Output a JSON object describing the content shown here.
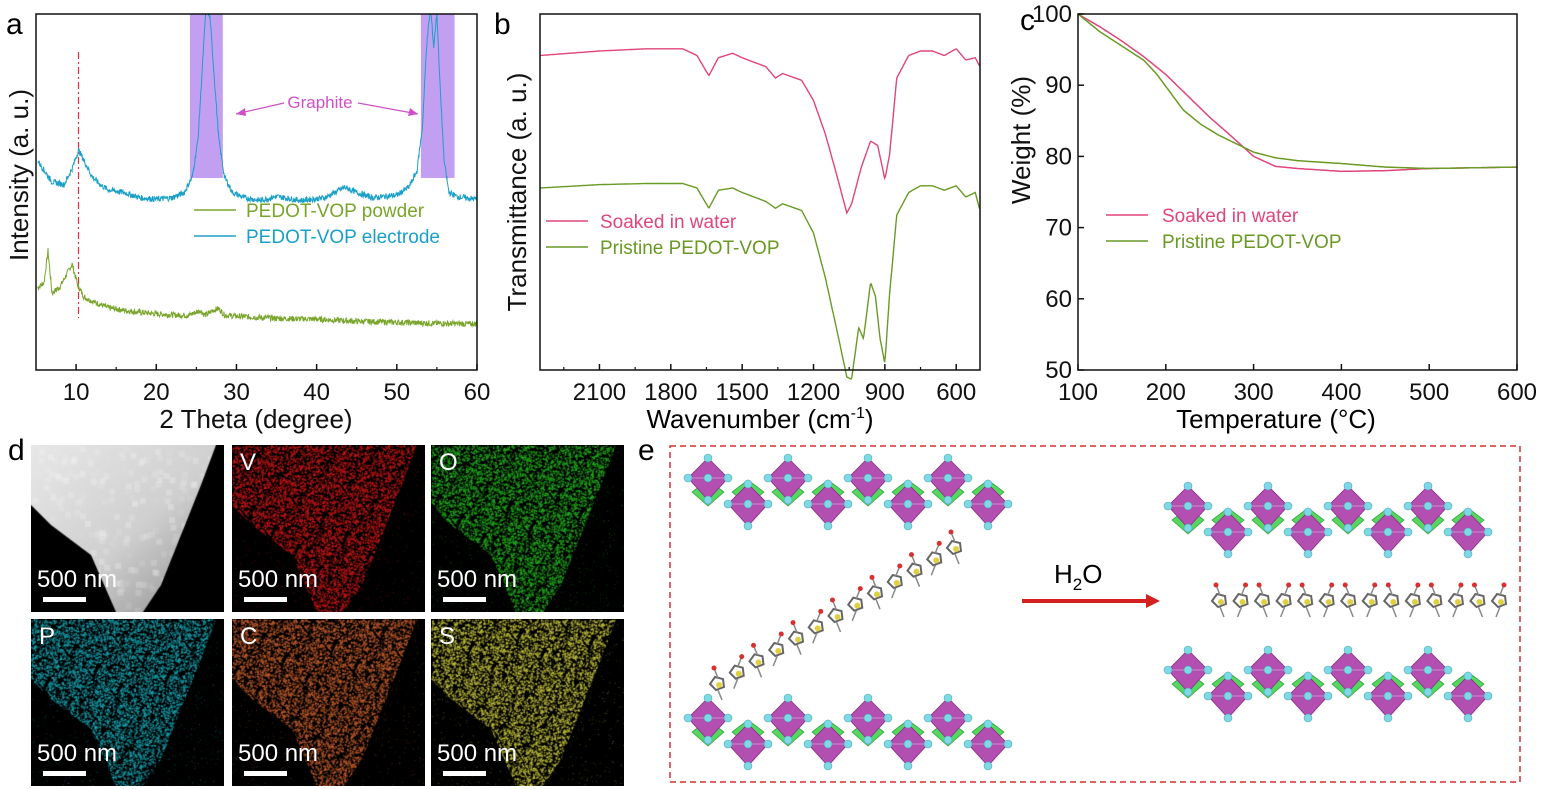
{
  "panels": {
    "a": {
      "letter": "a",
      "annotation": "Graphite"
    },
    "b": {
      "letter": "b"
    },
    "c": {
      "letter": "c"
    },
    "d": {
      "letter": "d"
    },
    "e": {
      "letter": "e",
      "arrow_label_main": "H",
      "arrow_label_sub": "2",
      "arrow_label_tail": "O"
    }
  },
  "chart_data": [
    {
      "panel": "a",
      "type": "line",
      "xlabel": "2 Theta (degree)",
      "ylabel": "Intensity (a. u.)",
      "xlim": [
        5,
        60
      ],
      "xticks": [
        10,
        20,
        30,
        40,
        50,
        60
      ],
      "series": [
        {
          "name": "PEDOT-VOP powder",
          "color": "#7aa52c",
          "x": [
            5.2,
            6,
            6.5,
            7,
            8,
            8.8,
            9.5,
            10.2,
            11,
            12,
            14,
            16,
            18,
            20,
            22,
            24,
            25.5,
            26,
            26.5,
            27,
            27.8,
            28.5,
            30,
            35,
            40,
            45,
            50,
            55,
            60
          ],
          "y": [
            1.4,
            1.6,
            2.8,
            1.2,
            1.45,
            1.9,
            2.3,
            1.5,
            1.05,
            0.9,
            0.65,
            0.55,
            0.48,
            0.42,
            0.38,
            0.36,
            0.55,
            0.38,
            0.42,
            0.55,
            0.62,
            0.38,
            0.33,
            0.25,
            0.22,
            0.14,
            0.1,
            0.06,
            0.04
          ]
        },
        {
          "name": "PEDOT-VOP electrode",
          "color": "#1aa0c8",
          "x": [
            5.2,
            7,
            8.5,
            9.5,
            10.3,
            11,
            12,
            13,
            14,
            16,
            18,
            20,
            22,
            23.5,
            24.5,
            25.2,
            25.8,
            26.2,
            26.7,
            27.2,
            27.8,
            28.5,
            29.5,
            31,
            33,
            35,
            38,
            41,
            43.5,
            45,
            47,
            50,
            51.5,
            52.5,
            53.2,
            53.7,
            54.2,
            54.6,
            55.0,
            55.4,
            55.9,
            56.5,
            57.5,
            58.5,
            60
          ],
          "y": [
            6.2,
            5.4,
            5.3,
            5.9,
            6.6,
            6.2,
            5.6,
            5.3,
            5.1,
            5.0,
            4.8,
            4.75,
            4.8,
            5.0,
            5.6,
            7.0,
            10.0,
            12.0,
            11.6,
            9.5,
            7.0,
            5.6,
            5.0,
            4.8,
            4.7,
            4.85,
            4.7,
            4.8,
            5.2,
            5.0,
            4.8,
            4.9,
            5.2,
            5.8,
            7.5,
            10.5,
            12.0,
            10.5,
            11.8,
            9.0,
            6.2,
            5.0,
            4.85,
            4.8,
            4.75
          ]
        }
      ],
      "markers": {
        "dashed_line_x": 10.3,
        "graphite_bands": [
          [
            24.2,
            28.3
          ],
          [
            53.0,
            57.2
          ]
        ]
      }
    },
    {
      "panel": "b",
      "type": "line",
      "xlabel": "Wavenumber (cm",
      "xlabel_sup": "-1",
      "xlabel_tail": ")",
      "ylabel": "Transmittance (a. u.)",
      "xlim": [
        2350,
        500
      ],
      "xticks": [
        2100,
        1800,
        1500,
        1200,
        900,
        600
      ],
      "series": [
        {
          "name": "Soaked in water",
          "color": "#e0457b",
          "x": [
            2350,
            2100,
            1900,
            1750,
            1690,
            1640,
            1600,
            1540,
            1500,
            1450,
            1400,
            1360,
            1330,
            1250,
            1200,
            1150,
            1100,
            1060,
            1040,
            1000,
            960,
            930,
            900,
            880,
            850,
            800,
            750,
            700,
            650,
            600,
            560,
            520,
            500
          ],
          "y": [
            7.0,
            7.2,
            7.3,
            7.3,
            7.0,
            6.1,
            6.9,
            7.1,
            6.9,
            6.7,
            6.5,
            6.0,
            6.2,
            5.9,
            5.0,
            3.5,
            1.6,
            0.0,
            0.4,
            2.0,
            3.2,
            3.0,
            1.5,
            2.6,
            6.0,
            7.0,
            7.2,
            7.2,
            7.0,
            7.3,
            6.8,
            6.9,
            6.5
          ]
        },
        {
          "name": "Pristine PEDOT-VOP",
          "color": "#6a9a25",
          "x": [
            2350,
            2100,
            1900,
            1750,
            1690,
            1640,
            1600,
            1540,
            1500,
            1450,
            1400,
            1360,
            1330,
            1250,
            1200,
            1150,
            1100,
            1060,
            1040,
            1010,
            990,
            960,
            940,
            920,
            900,
            880,
            850,
            800,
            750,
            700,
            650,
            600,
            560,
            520,
            500
          ],
          "y": [
            7.2,
            7.35,
            7.4,
            7.4,
            7.2,
            6.3,
            7.1,
            7.2,
            7.0,
            6.8,
            6.6,
            6.3,
            6.5,
            6.2,
            5.2,
            3.2,
            0.8,
            -1.2,
            -1.3,
            1.0,
            0.5,
            3.0,
            2.4,
            0.5,
            -0.6,
            2.5,
            6.0,
            7.0,
            7.3,
            7.3,
            7.1,
            7.3,
            6.8,
            7.0,
            6.2
          ]
        }
      ]
    },
    {
      "panel": "c",
      "type": "line",
      "xlabel": "Temperature (",
      "xlabel_unit": "°C",
      "xlabel_tail": ")",
      "ylabel": "Weight (%)",
      "xlim": [
        100,
        600
      ],
      "ylim": [
        50,
        100
      ],
      "xticks": [
        100,
        200,
        300,
        400,
        500,
        600
      ],
      "yticks": [
        50,
        60,
        70,
        80,
        90,
        100
      ],
      "series": [
        {
          "name": "Soaked in water",
          "color": "#e0457b",
          "x": [
            100,
            125,
            150,
            175,
            200,
            225,
            250,
            275,
            300,
            325,
            350,
            400,
            450,
            500,
            550,
            600
          ],
          "y": [
            100,
            98.2,
            96.2,
            94.0,
            91.5,
            88.5,
            85.5,
            82.8,
            80.0,
            78.6,
            78.3,
            77.9,
            78.0,
            78.3,
            78.4,
            78.5
          ]
        },
        {
          "name": "Pristine PEDOT-VOP",
          "color": "#6a9a25",
          "x": [
            100,
            125,
            150,
            175,
            190,
            205,
            220,
            240,
            260,
            280,
            300,
            325,
            350,
            400,
            450,
            500,
            550,
            600
          ],
          "y": [
            100,
            97.5,
            95.5,
            93.5,
            91.5,
            89.0,
            86.5,
            84.5,
            83.0,
            81.8,
            80.6,
            79.8,
            79.4,
            79.0,
            78.5,
            78.3,
            78.4,
            78.5
          ]
        }
      ]
    }
  ],
  "micrographs": [
    {
      "label": "",
      "scale": "500 nm",
      "kind": "haadf"
    },
    {
      "label": "V",
      "scale": "500 nm",
      "color": "#d01818"
    },
    {
      "label": "O",
      "scale": "500 nm",
      "color": "#25b520"
    },
    {
      "label": "P",
      "scale": "500 nm",
      "color": "#1aa7b5"
    },
    {
      "label": "C",
      "scale": "500 nm",
      "color": "#c9602e"
    },
    {
      "label": "S",
      "scale": "500 nm",
      "color": "#c8c640"
    }
  ],
  "colors": {
    "octahedra": "#b24fb0",
    "tetrahedra": "#55d660",
    "atoms": "#7fd8e6",
    "arrow": "#d42020",
    "frame": "#d03030"
  }
}
